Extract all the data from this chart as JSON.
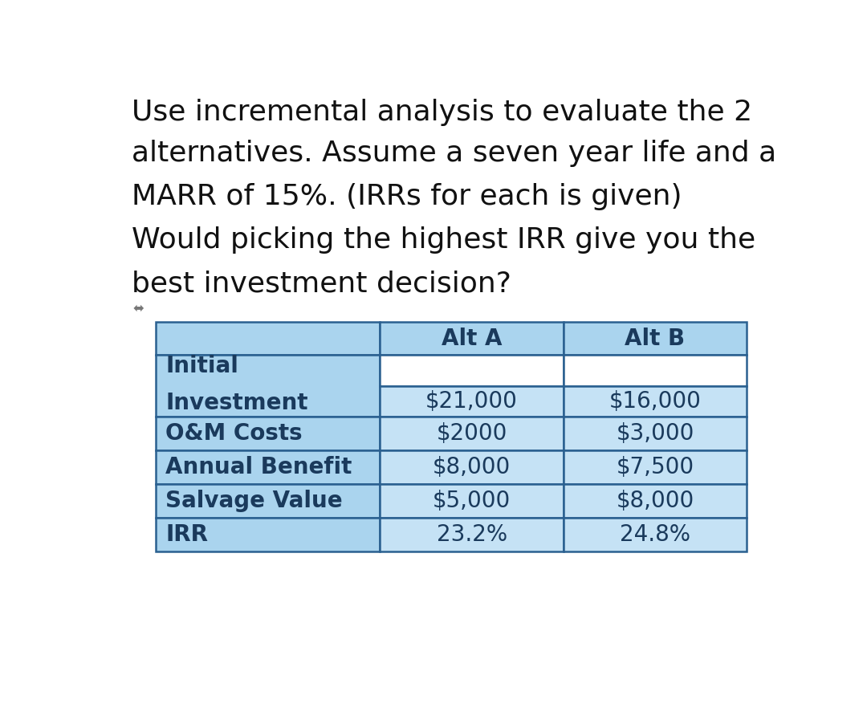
{
  "title_lines": [
    "Use incremental analysis to evaluate the 2",
    "alternatives. Assume a seven year life and a",
    "MARR of 15%. (IRRs for each is given)",
    "Would picking the highest IRR give you the",
    "best investment decision?"
  ],
  "col_headers": [
    "",
    "Alt A",
    "Alt B"
  ],
  "rows": [
    [
      "Initial\nInvestment",
      "$21,000",
      "$16,000"
    ],
    [
      "O&M Costs",
      "$2000",
      "$3,000"
    ],
    [
      "Annual Benefit",
      "$8,000",
      "$7,500"
    ],
    [
      "Salvage Value",
      "$5,000",
      "$8,000"
    ],
    [
      "IRR",
      "23.2%",
      "24.8%"
    ]
  ],
  "header_bg": "#aad4ee",
  "row_label_bg": "#aad4ee",
  "row_data_bg": "#c5e2f5",
  "row_data_white": "#ffffff",
  "border_color": "#2a6090",
  "text_color": "#1a3a5c",
  "title_text_color": "#111111",
  "title_fontsize": 26,
  "table_fontsize": 20,
  "header_fontsize": 20,
  "bg_color": "#ffffff"
}
